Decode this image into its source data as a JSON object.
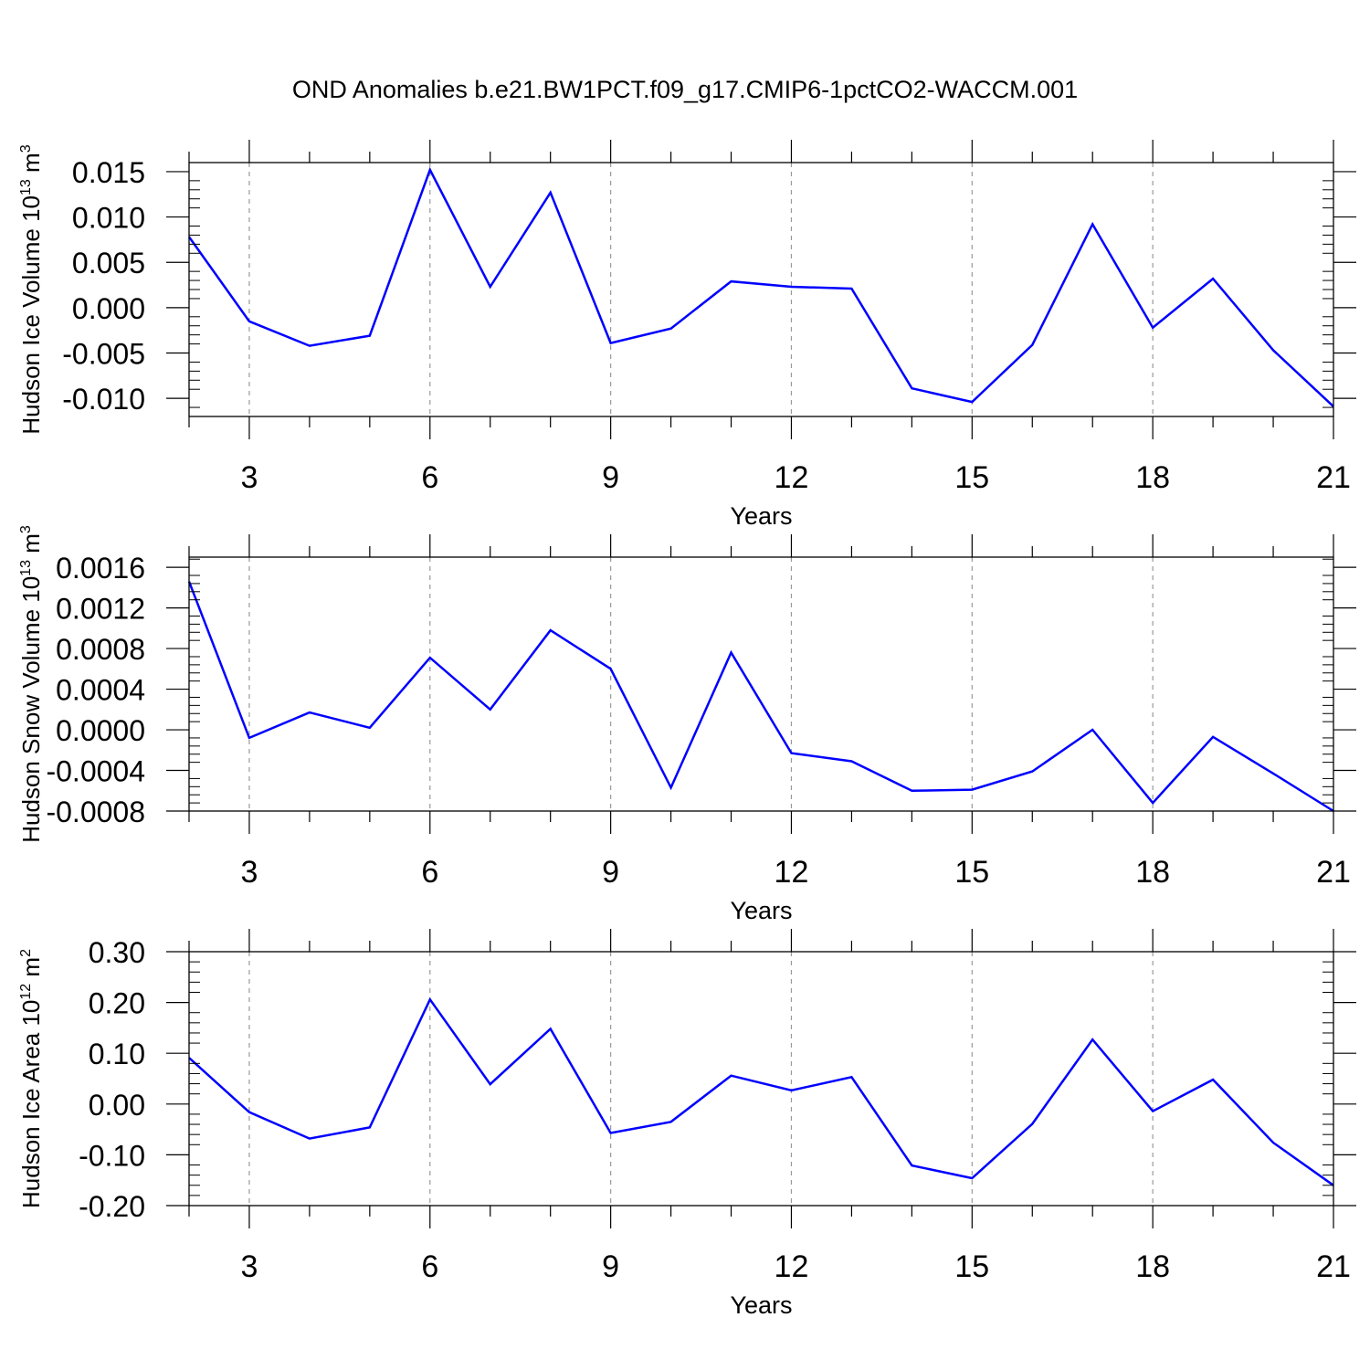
{
  "figure": {
    "title": "OND Anomalies b.e21.BW1PCT.f09_g17.CMIP6-1pctCO2-WACCM.001",
    "line_color": "#0000ff",
    "grid_color": "#999999"
  },
  "chart_data": [
    {
      "type": "line",
      "title": "",
      "xlabel": "Years",
      "ylabel": "Hudson Ice Volume 10",
      "ylabel_exp": "13",
      "ylabel_unit": " m",
      "ylabel_unit_exp": "3",
      "xlim": [
        2,
        21
      ],
      "ylim": [
        -0.012,
        0.016
      ],
      "xticks": [
        3,
        6,
        9,
        12,
        15,
        18,
        21
      ],
      "yticks": [
        -0.01,
        -0.005,
        0.0,
        0.005,
        0.01,
        0.015
      ],
      "ytick_labels": [
        "-0.010",
        "-0.005",
        "0.000",
        "0.005",
        "0.010",
        "0.015"
      ],
      "grid": "vertical dashed at major x ticks",
      "series": [
        {
          "x": [
            2,
            3,
            4,
            5,
            6,
            7,
            8,
            9,
            10,
            11,
            12,
            13,
            14,
            15,
            16,
            17,
            18,
            19,
            20,
            21
          ],
          "values": [
            0.0078,
            -0.0015,
            -0.0042,
            -0.0031,
            0.0152,
            0.0023,
            0.0127,
            -0.0039,
            -0.0023,
            0.0029,
            0.0023,
            0.0021,
            -0.0089,
            -0.0104,
            -0.0041,
            0.0092,
            -0.0022,
            0.0032,
            -0.0047,
            -0.0109
          ]
        }
      ]
    },
    {
      "type": "line",
      "title": "",
      "xlabel": "Years",
      "ylabel": "Hudson Snow Volume 10",
      "ylabel_exp": "13",
      "ylabel_unit": " m",
      "ylabel_unit_exp": "3",
      "xlim": [
        2,
        21
      ],
      "ylim": [
        -0.0008,
        0.0017
      ],
      "xticks": [
        3,
        6,
        9,
        12,
        15,
        18,
        21
      ],
      "yticks": [
        -0.0008,
        -0.0004,
        0.0,
        0.0004,
        0.0008,
        0.0012,
        0.0016
      ],
      "ytick_labels": [
        "-0.0008",
        "-0.0004",
        "0.0000",
        "0.0004",
        "0.0008",
        "0.0012",
        "0.0016"
      ],
      "grid": "vertical dashed at major x ticks",
      "series": [
        {
          "x": [
            2,
            3,
            4,
            5,
            6,
            7,
            8,
            9,
            10,
            11,
            12,
            13,
            14,
            15,
            16,
            17,
            18,
            19,
            20,
            21
          ],
          "values": [
            0.00146,
            -8e-05,
            0.00017,
            2e-05,
            0.00071,
            0.0002,
            0.00098,
            0.0006,
            -0.00057,
            0.00076,
            -0.00023,
            -0.00031,
            -0.0006,
            -0.00059,
            -0.00041,
            0.0,
            -0.00072,
            -7e-05,
            -0.00043,
            -0.0008
          ]
        }
      ]
    },
    {
      "type": "line",
      "title": "",
      "xlabel": "Years",
      "ylabel": "Hudson Ice Area 10",
      "ylabel_exp": "12",
      "ylabel_unit": " m",
      "ylabel_unit_exp": "2",
      "xlim": [
        2,
        21
      ],
      "ylim": [
        -0.2,
        0.3
      ],
      "xticks": [
        3,
        6,
        9,
        12,
        15,
        18,
        21
      ],
      "yticks": [
        -0.2,
        -0.1,
        0.0,
        0.1,
        0.2,
        0.3
      ],
      "ytick_labels": [
        "-0.20",
        "-0.10",
        "0.00",
        "0.10",
        "0.20",
        "0.30"
      ],
      "grid": "vertical dashed at major x ticks",
      "series": [
        {
          "x": [
            2,
            3,
            4,
            5,
            6,
            7,
            8,
            9,
            10,
            11,
            12,
            13,
            14,
            15,
            16,
            17,
            18,
            19,
            20,
            21
          ],
          "values": [
            0.091,
            -0.016,
            -0.068,
            -0.046,
            0.206,
            0.039,
            0.148,
            -0.057,
            -0.035,
            0.056,
            0.027,
            0.053,
            -0.121,
            -0.146,
            -0.039,
            0.127,
            -0.014,
            0.048,
            -0.076,
            -0.16
          ]
        }
      ]
    }
  ]
}
